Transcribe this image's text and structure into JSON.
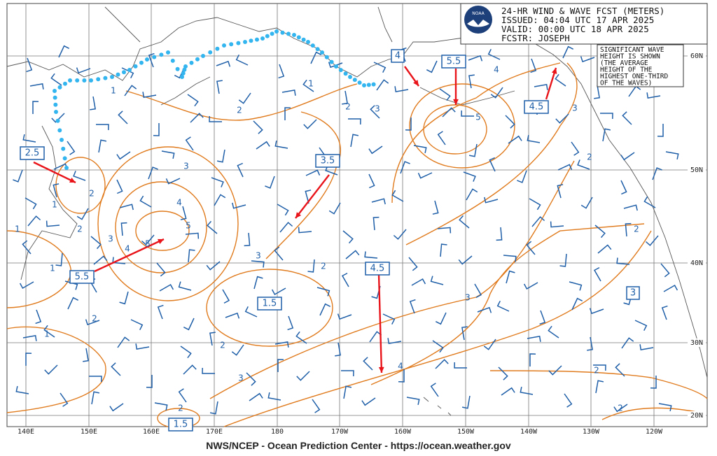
{
  "header": {
    "lines": [
      "24-HR WIND & WAVE FCST (METERS)",
      "ISSUED: 04:04 UTC 17 APR 2025",
      "VALID:  00:00 UTC 18 APR 2025",
      "FCSTR:  JOSEPH"
    ],
    "logo": "NOAA"
  },
  "note": {
    "lines": [
      "SIGNIFICANT WAVE",
      "HEIGHT IS SHOWN",
      "(THE AVERAGE",
      "HEIGHT OF THE",
      "HIGHEST ONE-THIRD",
      "OF THE WAVES)"
    ]
  },
  "lat_labels": [
    "60N",
    "50N",
    "40N",
    "30N",
    "20N"
  ],
  "lon_labels": [
    "140E",
    "150E",
    "160E",
    "170E",
    "180",
    "170W",
    "160W",
    "150W",
    "140W",
    "130W",
    "120W"
  ],
  "contour_labels": [
    "1",
    "1",
    "2",
    "2",
    "3",
    "4",
    "5",
    "3",
    "2",
    "3",
    "4",
    "5",
    "5",
    "4",
    "3",
    "2",
    "2",
    "1",
    "1",
    "1",
    "2",
    "1",
    "2",
    "3",
    "2",
    "3",
    "3",
    "4",
    "2",
    "2",
    "2",
    "2"
  ],
  "boxed_labels": [
    "2.5",
    "3.5",
    "4",
    "5.5",
    "4.5",
    "5.5",
    "4.5",
    "1.5",
    "3",
    "1.5"
  ],
  "footer": "NWS/NCEP - Ocean Prediction Center - https://ocean.weather.gov"
}
